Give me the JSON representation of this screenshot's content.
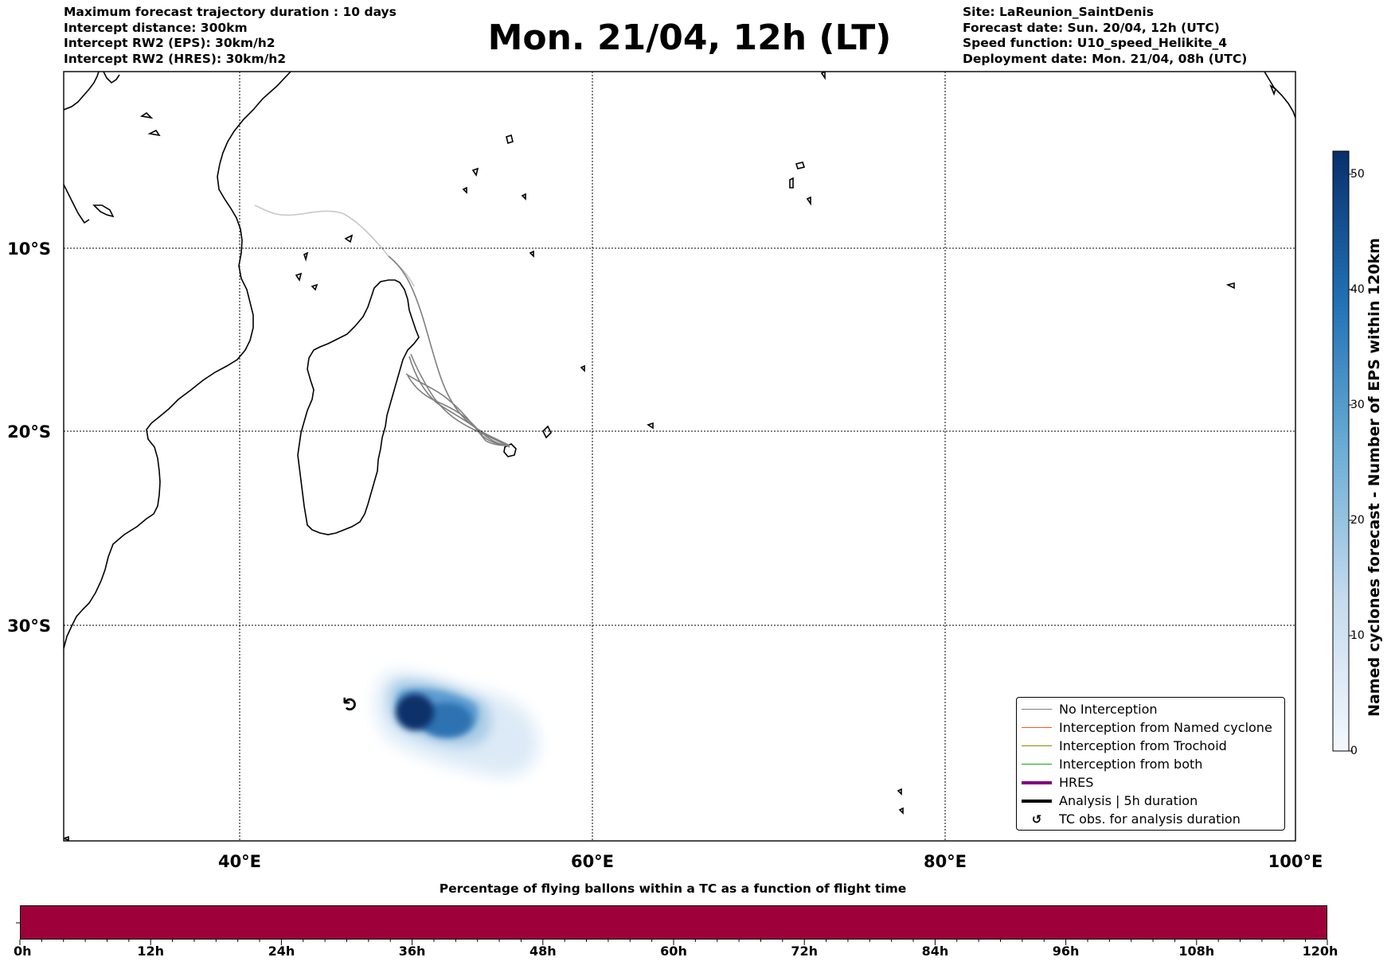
{
  "header": {
    "left_lines": [
      "Maximum forecast trajectory duration : 10 days",
      "Intercept distance: 300km",
      "Intercept RW2 (EPS):  30km/h2",
      "Intercept RW2 (HRES): 30km/h2"
    ],
    "title": "Mon. 21/04, 12h (LT)",
    "right_lines": [
      "Site: LaReunion_SaintDenis",
      "Forecast date: Sun. 20/04, 12h (UTC)",
      "Speed function: U10_speed_Helikite_4",
      "Deployment date: Mon. 21/04, 08h (UTC)"
    ]
  },
  "map": {
    "lon_labels": [
      "40°E",
      "60°E",
      "80°E",
      "100°E"
    ],
    "lat_labels": [
      "10°S",
      "20°S",
      "30°S"
    ]
  },
  "legend": {
    "items": [
      {
        "label": "No Interception",
        "color": "#7f7f7f",
        "kind": "line-thin"
      },
      {
        "label": "Interception from Named cyclone",
        "color": "#ff5722",
        "kind": "line-thin"
      },
      {
        "label": "Interception from Trochoid",
        "color": "#8b8b00",
        "kind": "line-thin"
      },
      {
        "label": "Interception from both",
        "color": "#1f9e1f",
        "kind": "line-thin"
      },
      {
        "label": "HRES",
        "color": "#800080",
        "kind": "line-thick"
      },
      {
        "label": "Analysis | 5h duration",
        "color": "#000000",
        "kind": "line-thick"
      },
      {
        "label": "TC obs. for analysis duration",
        "color": "#000000",
        "kind": "symbol",
        "symbol": "↺"
      }
    ]
  },
  "tc_symbol": "↺",
  "colorbar": {
    "label": "Named cyclones forecast - Number of EPS within 120km",
    "ticks": [
      "0",
      "10",
      "20",
      "30",
      "40",
      "50"
    ],
    "min": 0,
    "max": 52,
    "color_low": "#eef4fb",
    "color_high": "#08306b"
  },
  "percentage_bar": {
    "title": "Percentage of flying ballons within a TC as a function of flight time",
    "color": "#9e003a",
    "labels": [
      "0h",
      "12h",
      "24h",
      "36h",
      "48h",
      "60h",
      "72h",
      "84h",
      "96h",
      "108h",
      "120h"
    ]
  }
}
